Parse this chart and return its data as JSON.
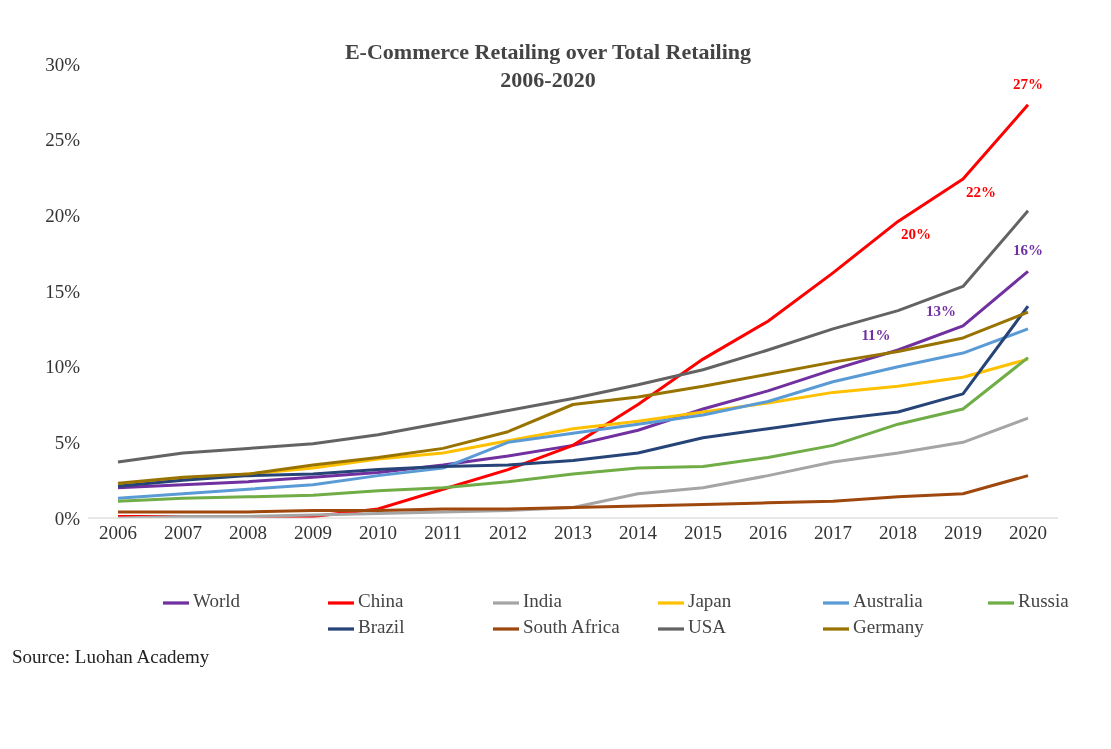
{
  "chart_data": {
    "type": "line",
    "title": "E-Commerce Retailing over Total Retailing",
    "subtitle": "2006-2020",
    "categories": [
      "2006",
      "2007",
      "2008",
      "2009",
      "2010",
      "2011",
      "2012",
      "2013",
      "2014",
      "2015",
      "2016",
      "2017",
      "2018",
      "2019",
      "2020"
    ],
    "series": [
      {
        "name": "World",
        "color": "#7030a0",
        "values": [
          2.0,
          2.2,
          2.4,
          2.7,
          3.0,
          3.5,
          4.1,
          4.8,
          5.8,
          7.2,
          8.4,
          9.8,
          11.1,
          12.7,
          16.3
        ],
        "value_labels": [
          null,
          null,
          null,
          null,
          null,
          null,
          null,
          null,
          null,
          null,
          null,
          null,
          "11%",
          "13%",
          "16%"
        ]
      },
      {
        "name": "China",
        "color": "#ff0000",
        "values": [
          0.1,
          0.1,
          0.1,
          0.1,
          0.6,
          1.9,
          3.2,
          4.8,
          7.5,
          10.5,
          13.0,
          16.2,
          19.6,
          22.4,
          27.3
        ],
        "value_labels": [
          null,
          null,
          null,
          null,
          null,
          null,
          null,
          null,
          null,
          null,
          null,
          null,
          "20%",
          "22%",
          "27%"
        ]
      },
      {
        "name": "India",
        "color": "#a5a5a5",
        "values": [
          0.0,
          0.1,
          0.1,
          0.2,
          0.3,
          0.4,
          0.5,
          0.7,
          1.6,
          2.0,
          2.8,
          3.7,
          4.3,
          5.0,
          6.6
        ]
      },
      {
        "name": "Japan",
        "color": "#ffc000",
        "values": [
          2.2,
          2.6,
          2.9,
          3.3,
          3.9,
          4.3,
          5.1,
          5.9,
          6.4,
          7.0,
          7.6,
          8.3,
          8.7,
          9.3,
          10.5
        ]
      },
      {
        "name": "Australia",
        "color": "#5b9bd5",
        "values": [
          1.3,
          1.6,
          1.9,
          2.2,
          2.8,
          3.3,
          5.0,
          5.6,
          6.2,
          6.8,
          7.7,
          9.0,
          10.0,
          10.9,
          12.5
        ]
      },
      {
        "name": "Russia",
        "color": "#70ad47",
        "values": [
          1.1,
          1.3,
          1.4,
          1.5,
          1.8,
          2.0,
          2.4,
          2.9,
          3.3,
          3.4,
          4.0,
          4.8,
          6.2,
          7.2,
          10.6
        ]
      },
      {
        "name": "Brazil",
        "color": "#264478",
        "values": [
          2.1,
          2.5,
          2.8,
          2.9,
          3.2,
          3.4,
          3.5,
          3.8,
          4.3,
          5.3,
          5.9,
          6.5,
          7.0,
          8.2,
          14.0
        ]
      },
      {
        "name": "South Africa",
        "color": "#9e480e",
        "values": [
          0.4,
          0.4,
          0.4,
          0.5,
          0.5,
          0.6,
          0.6,
          0.7,
          0.8,
          0.9,
          1.0,
          1.1,
          1.4,
          1.6,
          2.8
        ]
      },
      {
        "name": "USA",
        "color": "#636363",
        "values": [
          3.7,
          4.3,
          4.6,
          4.9,
          5.5,
          6.3,
          7.1,
          7.9,
          8.8,
          9.8,
          11.1,
          12.5,
          13.7,
          15.3,
          20.3
        ]
      },
      {
        "name": "Germany",
        "color": "#997300",
        "values": [
          2.3,
          2.7,
          2.9,
          3.5,
          4.0,
          4.6,
          5.7,
          7.5,
          8.0,
          8.7,
          9.5,
          10.3,
          11.0,
          11.9,
          13.6
        ]
      }
    ],
    "ylim": [
      0,
      30
    ],
    "yticks": [
      {
        "value": 0,
        "label": "0%"
      },
      {
        "value": 5,
        "label": "5%"
      },
      {
        "value": 10,
        "label": "10%"
      },
      {
        "value": 15,
        "label": "15%"
      },
      {
        "value": 20,
        "label": "20%"
      },
      {
        "value": 25,
        "label": "25%"
      },
      {
        "value": 30,
        "label": "30%"
      }
    ],
    "grid": false,
    "legend": "bottom",
    "marker": "none",
    "line_style": "solid",
    "annotations": [
      "Source: Luohan Academy"
    ]
  }
}
